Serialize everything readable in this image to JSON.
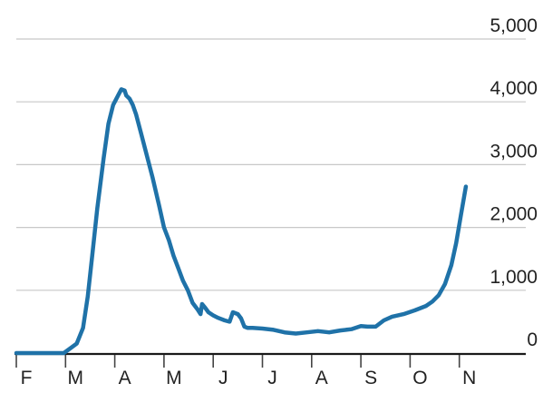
{
  "chart_data": {
    "type": "line",
    "title": "",
    "xlabel": "",
    "ylabel": "",
    "ylim": [
      0,
      5000
    ],
    "y_ticks": [
      0,
      1000,
      2000,
      3000,
      4000,
      5000
    ],
    "y_tick_labels": [
      "0",
      "1,000",
      "2,000",
      "3,000",
      "4,000",
      "5,000"
    ],
    "y_axis_position": "right",
    "grid": "horizontal",
    "x_range": [
      "2020-02-01",
      "2020-11-30"
    ],
    "x_tick_labels": [
      "F",
      "M",
      "A",
      "M",
      "J",
      "J",
      "A",
      "S",
      "O",
      "N"
    ],
    "series": [
      {
        "x": [
          "2020-02-01",
          "2020-02-15",
          "2020-02-29",
          "2020-03-08",
          "2020-03-12",
          "2020-03-15",
          "2020-03-18",
          "2020-03-21",
          "2020-03-25",
          "2020-03-28",
          "2020-03-31",
          "2020-04-03",
          "2020-04-05",
          "2020-04-07",
          "2020-04-08",
          "2020-04-10",
          "2020-04-12",
          "2020-04-14",
          "2020-04-17",
          "2020-04-20",
          "2020-04-24",
          "2020-04-28",
          "2020-05-01",
          "2020-05-04",
          "2020-05-07",
          "2020-05-10",
          "2020-05-13",
          "2020-05-16",
          "2020-05-19",
          "2020-05-22",
          "2020-05-24",
          "2020-05-25",
          "2020-05-27",
          "2020-05-29",
          "2020-06-01",
          "2020-06-04",
          "2020-06-08",
          "2020-06-11",
          "2020-06-13",
          "2020-06-16",
          "2020-06-18",
          "2020-06-20",
          "2020-06-22",
          "2020-06-25",
          "2020-07-01",
          "2020-07-08",
          "2020-07-15",
          "2020-07-22",
          "2020-07-29",
          "2020-08-05",
          "2020-08-12",
          "2020-08-19",
          "2020-08-26",
          "2020-09-01",
          "2020-09-05",
          "2020-09-10",
          "2020-09-15",
          "2020-09-20",
          "2020-09-27",
          "2020-10-04",
          "2020-10-11",
          "2020-10-15",
          "2020-10-19",
          "2020-10-23",
          "2020-10-27",
          "2020-10-30",
          "2020-11-02",
          "2020-11-05"
        ],
        "values": [
          0,
          0,
          0,
          150,
          400,
          900,
          1600,
          2300,
          3100,
          3650,
          3950,
          4100,
          4200,
          4180,
          4100,
          4050,
          3950,
          3800,
          3500,
          3200,
          2800,
          2350,
          2000,
          1800,
          1550,
          1350,
          1150,
          1000,
          800,
          700,
          620,
          780,
          720,
          650,
          600,
          560,
          520,
          500,
          650,
          620,
          550,
          420,
          400,
          400,
          390,
          370,
          330,
          310,
          330,
          350,
          330,
          360,
          380,
          430,
          420,
          420,
          520,
          580,
          620,
          680,
          750,
          820,
          920,
          1100,
          1400,
          1750,
          2200,
          2650
        ]
      }
    ]
  }
}
